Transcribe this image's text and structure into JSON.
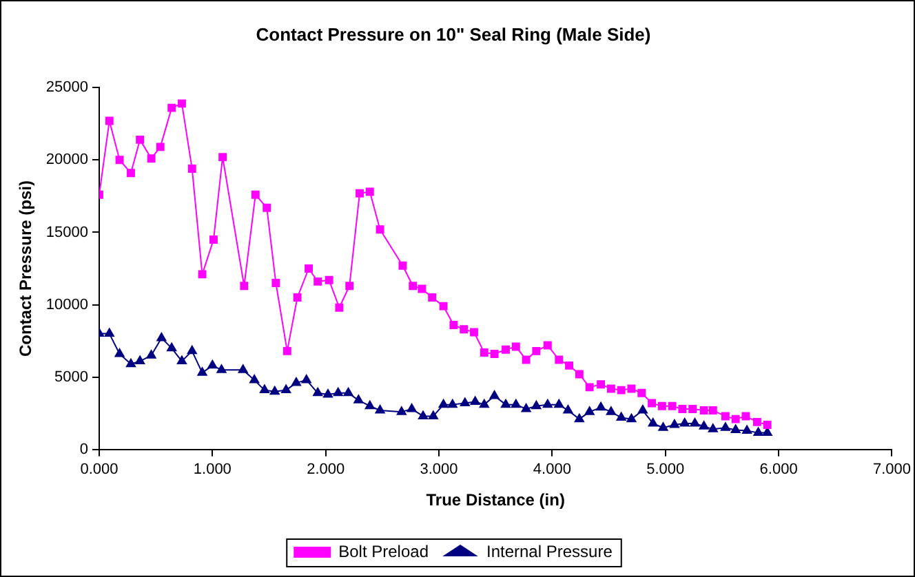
{
  "chart_data": {
    "type": "line",
    "title": "Contact Pressure on 10\" Seal Ring (Male Side)",
    "xlabel": "True Distance (in)",
    "ylabel": "Contact Pressure (psi)",
    "xlim": [
      0,
      7
    ],
    "xticks": [
      {
        "value": 0,
        "label": "0.000"
      },
      {
        "value": 1,
        "label": "1.000"
      },
      {
        "value": 2,
        "label": "2.000"
      },
      {
        "value": 3,
        "label": "3.000"
      },
      {
        "value": 4,
        "label": "4.000"
      },
      {
        "value": 5,
        "label": "5.000"
      },
      {
        "value": 6,
        "label": "6.000"
      },
      {
        "value": 7,
        "label": "7.000"
      }
    ],
    "ylim": [
      0,
      25000
    ],
    "yticks": [
      0,
      5000,
      10000,
      15000,
      20000,
      25000
    ],
    "grid": false,
    "legend": "bottom",
    "line_style": "solid",
    "series": [
      {
        "name": "Bolt Preload",
        "color": "#ff00ff",
        "marker": "square",
        "x": [
          0,
          0.09,
          0.18,
          0.28,
          0.36,
          0.46,
          0.54,
          0.64,
          0.73,
          0.82,
          0.91,
          1.01,
          1.09,
          1.28,
          1.38,
          1.48,
          1.56,
          1.66,
          1.75,
          1.85,
          1.93,
          2.03,
          2.12,
          2.21,
          2.3,
          2.39,
          2.48,
          2.68,
          2.77,
          2.85,
          2.94,
          3.04,
          3.13,
          3.22,
          3.31,
          3.4,
          3.49,
          3.59,
          3.68,
          3.77,
          3.86,
          3.96,
          4.06,
          4.15,
          4.24,
          4.33,
          4.43,
          4.52,
          4.61,
          4.7,
          4.79,
          4.88,
          4.97,
          5.06,
          5.15,
          5.24,
          5.34,
          5.42,
          5.53,
          5.62,
          5.71,
          5.81,
          5.9
        ],
        "values": [
          17600,
          22700,
          20000,
          19100,
          21400,
          20100,
          20900,
          23600,
          23900,
          19400,
          12100,
          14500,
          20200,
          11300,
          17600,
          16700,
          11500,
          6800,
          10500,
          12500,
          11600,
          11700,
          9800,
          11300,
          17700,
          17800,
          15200,
          12700,
          11300,
          11100,
          10500,
          9900,
          8600,
          8300,
          8100,
          6700,
          6600,
          6900,
          7100,
          6200,
          6800,
          7200,
          6200,
          5800,
          5200,
          4300,
          4500,
          4200,
          4100,
          4200,
          3900,
          3200,
          3000,
          3000,
          2800,
          2800,
          2700,
          2700,
          2300,
          2100,
          2300,
          1900,
          1700
        ]
      },
      {
        "name": "Internal Pressure",
        "color": "#000080",
        "marker": "triangle",
        "x": [
          0,
          0.09,
          0.18,
          0.28,
          0.36,
          0.46,
          0.55,
          0.64,
          0.73,
          0.82,
          0.91,
          1.0,
          1.08,
          1.27,
          1.37,
          1.46,
          1.55,
          1.65,
          1.74,
          1.83,
          1.93,
          2.02,
          2.11,
          2.2,
          2.29,
          2.39,
          2.48,
          2.67,
          2.76,
          2.86,
          2.95,
          3.04,
          3.12,
          3.23,
          3.32,
          3.4,
          3.49,
          3.59,
          3.68,
          3.77,
          3.86,
          3.96,
          4.06,
          4.14,
          4.24,
          4.33,
          4.43,
          4.52,
          4.61,
          4.7,
          4.8,
          4.89,
          4.98,
          5.08,
          5.17,
          5.26,
          5.34,
          5.42,
          5.53,
          5.62,
          5.72,
          5.82,
          5.9
        ],
        "values": [
          8000,
          8000,
          6600,
          5900,
          6100,
          6500,
          7700,
          7000,
          6100,
          6800,
          5300,
          5800,
          5500,
          5500,
          4800,
          4100,
          4000,
          4100,
          4600,
          4800,
          3900,
          3800,
          3900,
          3900,
          3400,
          3000,
          2700,
          2600,
          2800,
          2300,
          2300,
          3100,
          3100,
          3200,
          3300,
          3100,
          3700,
          3100,
          3100,
          2800,
          3000,
          3100,
          3100,
          2700,
          2100,
          2600,
          2900,
          2600,
          2200,
          2100,
          2700,
          1800,
          1500,
          1700,
          1800,
          1800,
          1600,
          1400,
          1500,
          1350,
          1300,
          1150,
          1150
        ]
      }
    ]
  }
}
